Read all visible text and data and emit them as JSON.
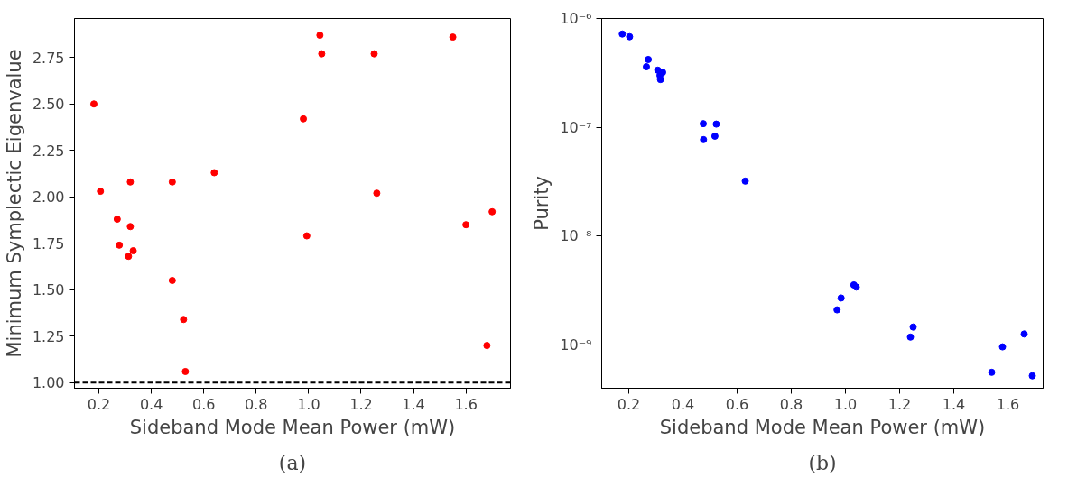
{
  "chart_data": [
    {
      "type": "scatter",
      "xlabel": "Sideband Mode Mean Power (mW)",
      "ylabel": "Minimum Symplectic Eigenvalue",
      "x": [
        0.181,
        0.206,
        0.27,
        0.278,
        0.32,
        0.32,
        0.313,
        0.331,
        0.48,
        0.48,
        0.523,
        0.53,
        0.64,
        0.98,
        0.993,
        1.043,
        1.05,
        1.25,
        1.26,
        1.55,
        1.6,
        1.68,
        1.7
      ],
      "series": [
        {
          "color": "#ff0000",
          "values": [
            2.5,
            2.03,
            1.88,
            1.74,
            2.08,
            1.84,
            1.68,
            1.71,
            2.08,
            1.55,
            1.34,
            1.06,
            2.13,
            2.42,
            1.79,
            2.87,
            2.77,
            2.77,
            2.02,
            2.86,
            1.85,
            1.2,
            1.92
          ]
        }
      ],
      "xlim": [
        0.107,
        1.77
      ],
      "ylim": [
        0.97,
        2.96
      ],
      "xticks": [
        {
          "value": 0.2,
          "label": "0.2"
        },
        {
          "value": 0.4,
          "label": "0.4"
        },
        {
          "value": 0.6,
          "label": "0.6"
        },
        {
          "value": 0.8,
          "label": "0.8"
        },
        {
          "value": 1.0,
          "label": "1.0"
        },
        {
          "value": 1.2,
          "label": "1.2"
        },
        {
          "value": 1.4,
          "label": "1.4"
        },
        {
          "value": 1.6,
          "label": "1.6"
        }
      ],
      "yticks": [
        {
          "value": 1.0,
          "label": "1.00"
        },
        {
          "value": 1.25,
          "label": "1.25"
        },
        {
          "value": 1.5,
          "label": "1.50"
        },
        {
          "value": 1.75,
          "label": "1.75"
        },
        {
          "value": 2.0,
          "label": "2.00"
        },
        {
          "value": 2.25,
          "label": "2.25"
        },
        {
          "value": 2.5,
          "label": "2.50"
        },
        {
          "value": 2.75,
          "label": "2.75"
        }
      ],
      "ref_lines": [
        {
          "axis": "y",
          "value": 1.0,
          "color": "#000000",
          "line_style": "dashed"
        }
      ],
      "annotations": [
        "(a)"
      ],
      "marker": "circle",
      "grid": false
    },
    {
      "type": "scatter",
      "xlabel": "Sideband Mode Mean Power (mW)",
      "ylabel": "Purity",
      "log": "y",
      "x": [
        0.176,
        0.203,
        0.272,
        0.265,
        0.307,
        0.325,
        0.315,
        0.317,
        0.475,
        0.523,
        0.476,
        0.518,
        0.63,
        0.969,
        0.984,
        1.031,
        1.04,
        1.24,
        1.25,
        1.54,
        1.58,
        1.66,
        1.69
      ],
      "series": [
        {
          "color": "#0000ff",
          "values": [
            7.2e-07,
            6.8e-07,
            4.2e-07,
            3.6e-07,
            3.35e-07,
            3.2e-07,
            3e-07,
            2.75e-07,
            1.08e-07,
            1.07e-07,
            7.7e-08,
            8.3e-08,
            3.2e-08,
            2.1e-09,
            2.7e-09,
            3.56e-09,
            3.4e-09,
            1.18e-09,
            1.46e-09,
            5.6e-10,
            9.6e-10,
            1.26e-09,
            5.2e-10
          ]
        }
      ],
      "xlim": [
        0.1,
        1.73
      ],
      "ylim": [
        4e-10,
        1e-06
      ],
      "xticks": [
        {
          "value": 0.2,
          "label": "0.2"
        },
        {
          "value": 0.4,
          "label": "0.4"
        },
        {
          "value": 0.6,
          "label": "0.6"
        },
        {
          "value": 0.8,
          "label": "0.8"
        },
        {
          "value": 1.0,
          "label": "1.0"
        },
        {
          "value": 1.2,
          "label": "1.2"
        },
        {
          "value": 1.4,
          "label": "1.4"
        },
        {
          "value": 1.6,
          "label": "1.6"
        }
      ],
      "yticks": [
        {
          "value": 1e-09,
          "label": "10⁻⁹"
        },
        {
          "value": 1e-08,
          "label": "10⁻⁸"
        },
        {
          "value": 1e-07,
          "label": "10⁻⁷"
        },
        {
          "value": 1e-06,
          "label": "10⁻⁶"
        }
      ],
      "annotations": [
        "(b)"
      ],
      "marker": "circle",
      "grid": false
    }
  ]
}
